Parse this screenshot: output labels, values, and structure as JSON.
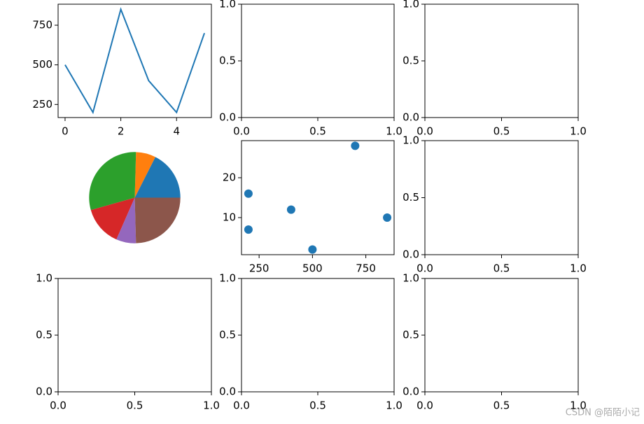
{
  "chart_data": [
    {
      "type": "line",
      "x": [
        0,
        1,
        2,
        3,
        4,
        5
      ],
      "values": [
        500,
        200,
        850,
        400,
        200,
        700
      ],
      "color": "#1f77b4",
      "xlim": [
        -0.25,
        5.25
      ],
      "xticks": [
        0,
        2,
        4
      ],
      "ylim": [
        167.5,
        882.5
      ],
      "yticks": [
        250,
        500,
        750
      ]
    },
    {
      "type": "axes",
      "xlim": [
        0,
        1
      ],
      "xticks": [
        {
          "value": 0,
          "label": "0.0"
        },
        {
          "value": 0.5,
          "label": "0.5"
        },
        {
          "value": 1,
          "label": "1.0"
        }
      ],
      "ylim": [
        0,
        1
      ],
      "yticks": [
        {
          "value": 0,
          "label": "0.0"
        },
        {
          "value": 0.5,
          "label": "0.5"
        },
        {
          "value": 1,
          "label": "1.0"
        }
      ]
    },
    {
      "type": "axes",
      "xlim": [
        0,
        1
      ],
      "xticks": [
        {
          "value": 0,
          "label": "0.0"
        },
        {
          "value": 0.5,
          "label": "0.5"
        },
        {
          "value": 1,
          "label": "1.0"
        }
      ],
      "ylim": [
        0,
        1
      ],
      "yticks": [
        {
          "value": 0,
          "label": "0.0"
        },
        {
          "value": 0.5,
          "label": "0.5"
        },
        {
          "value": 1,
          "label": "1.0"
        }
      ]
    },
    {
      "type": "pie",
      "values": [
        500,
        200,
        850,
        400,
        200,
        700
      ],
      "colors": [
        "#1f77b4",
        "#ff7f0e",
        "#2ca02c",
        "#d62728",
        "#9467bd",
        "#8c564b"
      ]
    },
    {
      "type": "scatter",
      "x": [
        500,
        200,
        850,
        400,
        200,
        700
      ],
      "values": [
        2,
        16,
        10,
        12,
        7,
        28
      ],
      "color": "#1f77b4",
      "xlim": [
        167.5,
        882.5
      ],
      "xticks": [
        250,
        500,
        750
      ],
      "ylim": [
        0.7,
        29.3
      ],
      "yticks": [
        10,
        20
      ]
    },
    {
      "type": "axes",
      "xlim": [
        0,
        1
      ],
      "xticks": [
        {
          "value": 0,
          "label": "0.0"
        },
        {
          "value": 0.5,
          "label": "0.5"
        },
        {
          "value": 1,
          "label": "1.0"
        }
      ],
      "ylim": [
        0,
        1
      ],
      "yticks": [
        {
          "value": 0,
          "label": "0.0"
        },
        {
          "value": 0.5,
          "label": "0.5"
        },
        {
          "value": 1,
          "label": "1.0"
        }
      ]
    },
    {
      "type": "axes",
      "xlim": [
        0,
        1
      ],
      "xticks": [
        {
          "value": 0,
          "label": "0.0"
        },
        {
          "value": 0.5,
          "label": "0.5"
        },
        {
          "value": 1,
          "label": "1.0"
        }
      ],
      "ylim": [
        0,
        1
      ],
      "yticks": [
        {
          "value": 0,
          "label": "0.0"
        },
        {
          "value": 0.5,
          "label": "0.5"
        },
        {
          "value": 1,
          "label": "1.0"
        }
      ]
    },
    {
      "type": "axes",
      "xlim": [
        0,
        1
      ],
      "xticks": [
        {
          "value": 0,
          "label": "0.0"
        },
        {
          "value": 0.5,
          "label": "0.5"
        },
        {
          "value": 1,
          "label": "1.0"
        }
      ],
      "ylim": [
        0,
        1
      ],
      "yticks": [
        {
          "value": 0,
          "label": "0.0"
        },
        {
          "value": 0.5,
          "label": "0.5"
        },
        {
          "value": 1,
          "label": "1.0"
        }
      ]
    },
    {
      "type": "axes",
      "xlim": [
        0,
        1
      ],
      "xticks": [
        {
          "value": 0,
          "label": "0.0"
        },
        {
          "value": 0.5,
          "label": "0.5"
        },
        {
          "value": 1,
          "label": "1.0"
        }
      ],
      "ylim": [
        0,
        1
      ],
      "yticks": [
        {
          "value": 0,
          "label": "0.0"
        },
        {
          "value": 0.5,
          "label": "0.5"
        },
        {
          "value": 1,
          "label": "1.0"
        }
      ]
    }
  ],
  "watermark": "CSDN @陌陌小记"
}
